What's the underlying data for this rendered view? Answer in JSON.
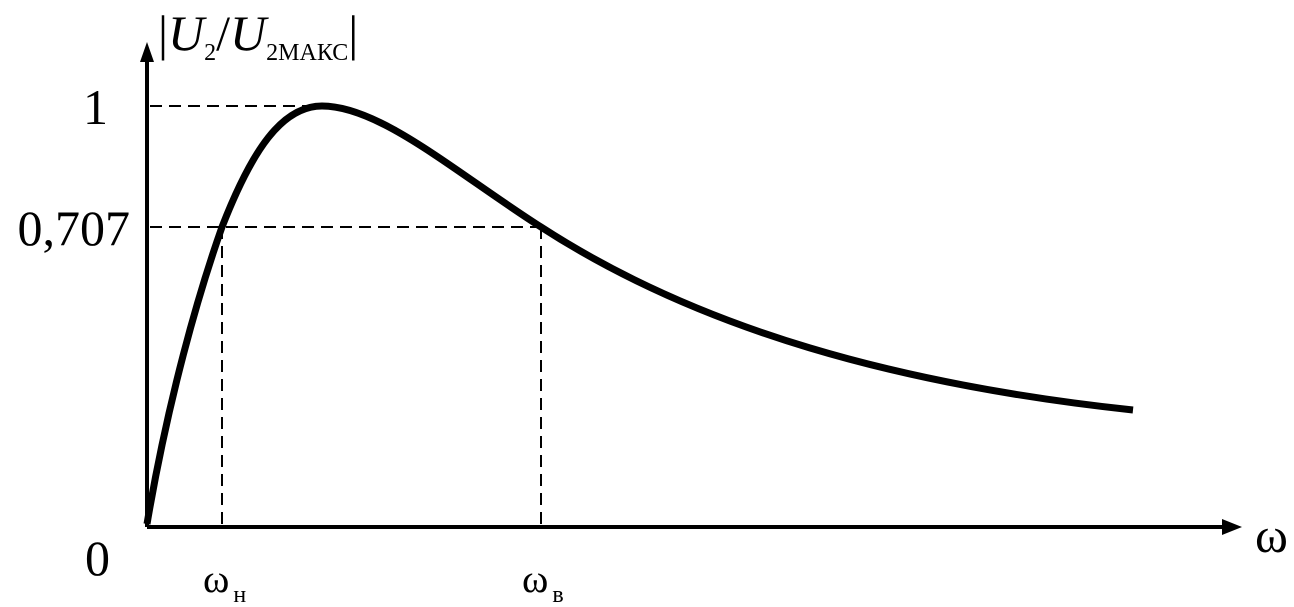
{
  "y_axis": {
    "label": [
      "|",
      "U",
      "2",
      "/",
      "U",
      "2МАКС",
      "|"
    ],
    "ticks": [
      "1",
      "0,707"
    ]
  },
  "origin_label": "0",
  "x_axis": {
    "label": "ω",
    "marks": [
      {
        "symbol": "ω",
        "subscript": "н"
      },
      {
        "symbol": "ω",
        "subscript": "в"
      }
    ]
  }
}
